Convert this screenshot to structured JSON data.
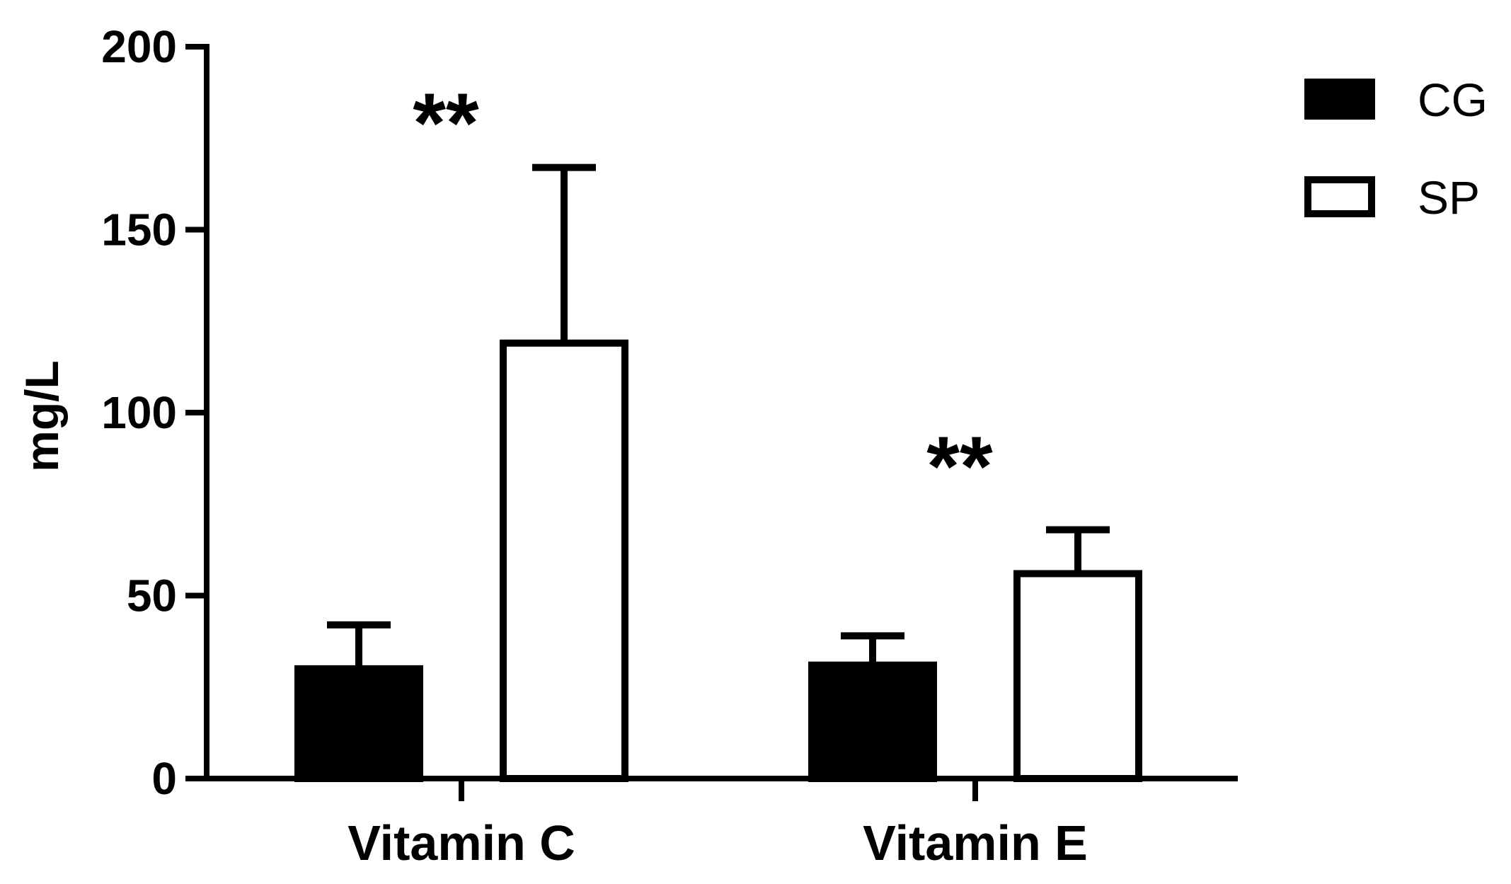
{
  "chart_data": {
    "type": "bar",
    "title": "",
    "xlabel": "",
    "ylabel": "mg/L",
    "ylim": [
      0,
      200
    ],
    "yticks": [
      0,
      50,
      100,
      150,
      200
    ],
    "categories": [
      "Vitamin C",
      "Vitamin E"
    ],
    "series": [
      {
        "name": "CG",
        "fill": "#000000",
        "values": [
          30,
          31
        ],
        "error": [
          12,
          8
        ]
      },
      {
        "name": "SP",
        "fill": "#ffffff",
        "values": [
          119,
          56
        ],
        "error": [
          48,
          12
        ]
      }
    ],
    "annotations": [
      {
        "category": "Vitamin C",
        "text": "**"
      },
      {
        "category": "Vitamin E",
        "text": "**"
      }
    ],
    "legend_position": "top-right",
    "grid": false
  }
}
